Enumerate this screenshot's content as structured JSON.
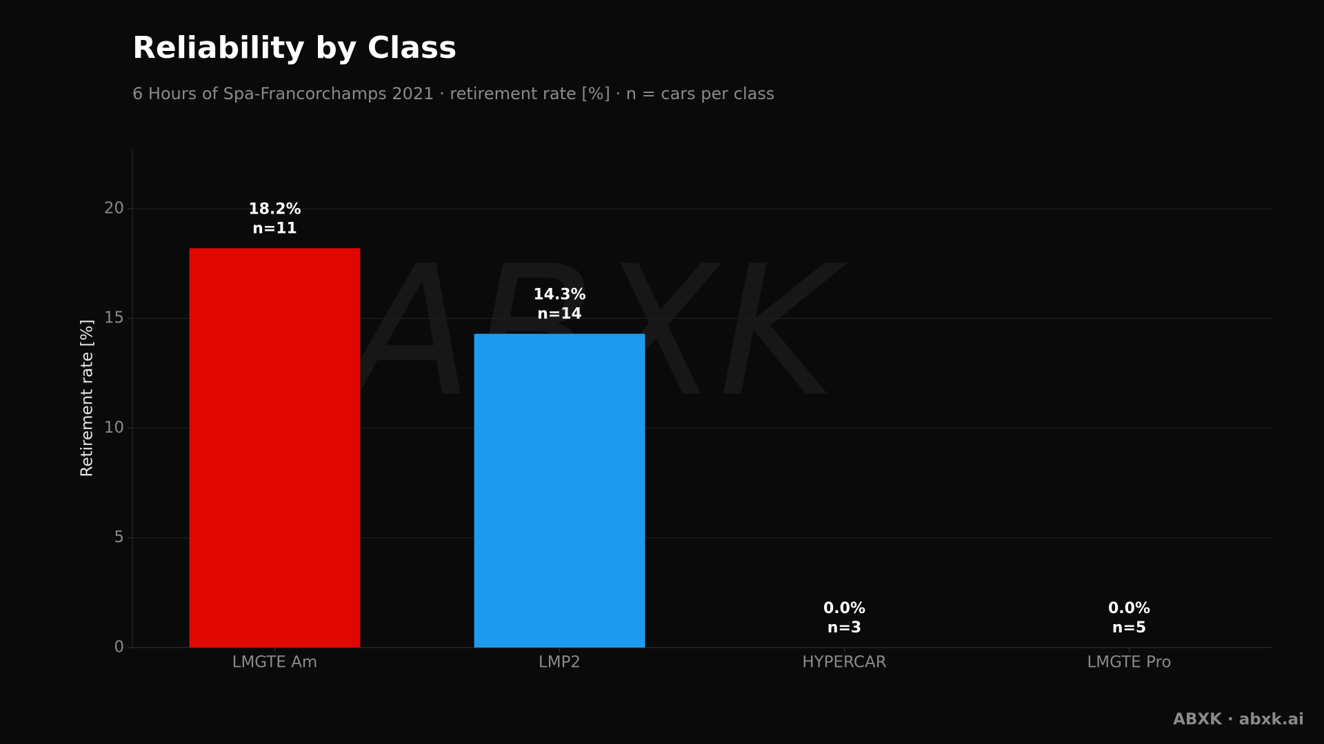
{
  "chart_data": {
    "type": "bar",
    "title": "Reliability by Class",
    "subtitle": "6 Hours of Spa-Francorchamps 2021 · retirement rate [%] · n = cars per class",
    "y_label": "Retirement rate [%]",
    "categories": [
      "LMGTE Am",
      "LMP2",
      "HYPERCAR",
      "LMGTE Pro"
    ],
    "values": [
      18.2,
      14.3,
      0.0,
      0.0
    ],
    "value_labels": [
      "18.2%",
      "14.3%",
      "0.0%",
      "0.0%"
    ],
    "count_labels": [
      "n=11",
      "n=14",
      "n=3",
      "n=5"
    ],
    "colors": [
      "#e10600",
      "#1e9bf0",
      "#e10600",
      "#1e9bf0"
    ],
    "ylim": [
      0,
      22.7
    ],
    "yticks": [
      0,
      5,
      10,
      15,
      20
    ],
    "grid": true,
    "footer": "ABXK · abxk.ai"
  }
}
